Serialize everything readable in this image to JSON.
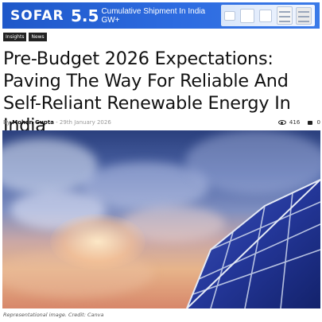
{
  "banner": {
    "logo": "SOFAR",
    "stat_number": "5.5",
    "stat_line1": "Cumulative Shipment In India",
    "stat_line2": "GW+"
  },
  "tags": [
    "Insights",
    "News"
  ],
  "headline": "Pre-Budget 2026 Expectations: Paving The Way For Reliable And Self-Reliant Renewable Energy In India",
  "meta": {
    "by": "By",
    "author": "Mohan Gupta",
    "separator": "-",
    "date": "29th January 2026",
    "views": "416",
    "comments": "0"
  },
  "image_caption": "Representational image. Credit: Canva",
  "colors": {
    "banner_blue": "#2d6be0",
    "tag_bg": "#222222"
  }
}
